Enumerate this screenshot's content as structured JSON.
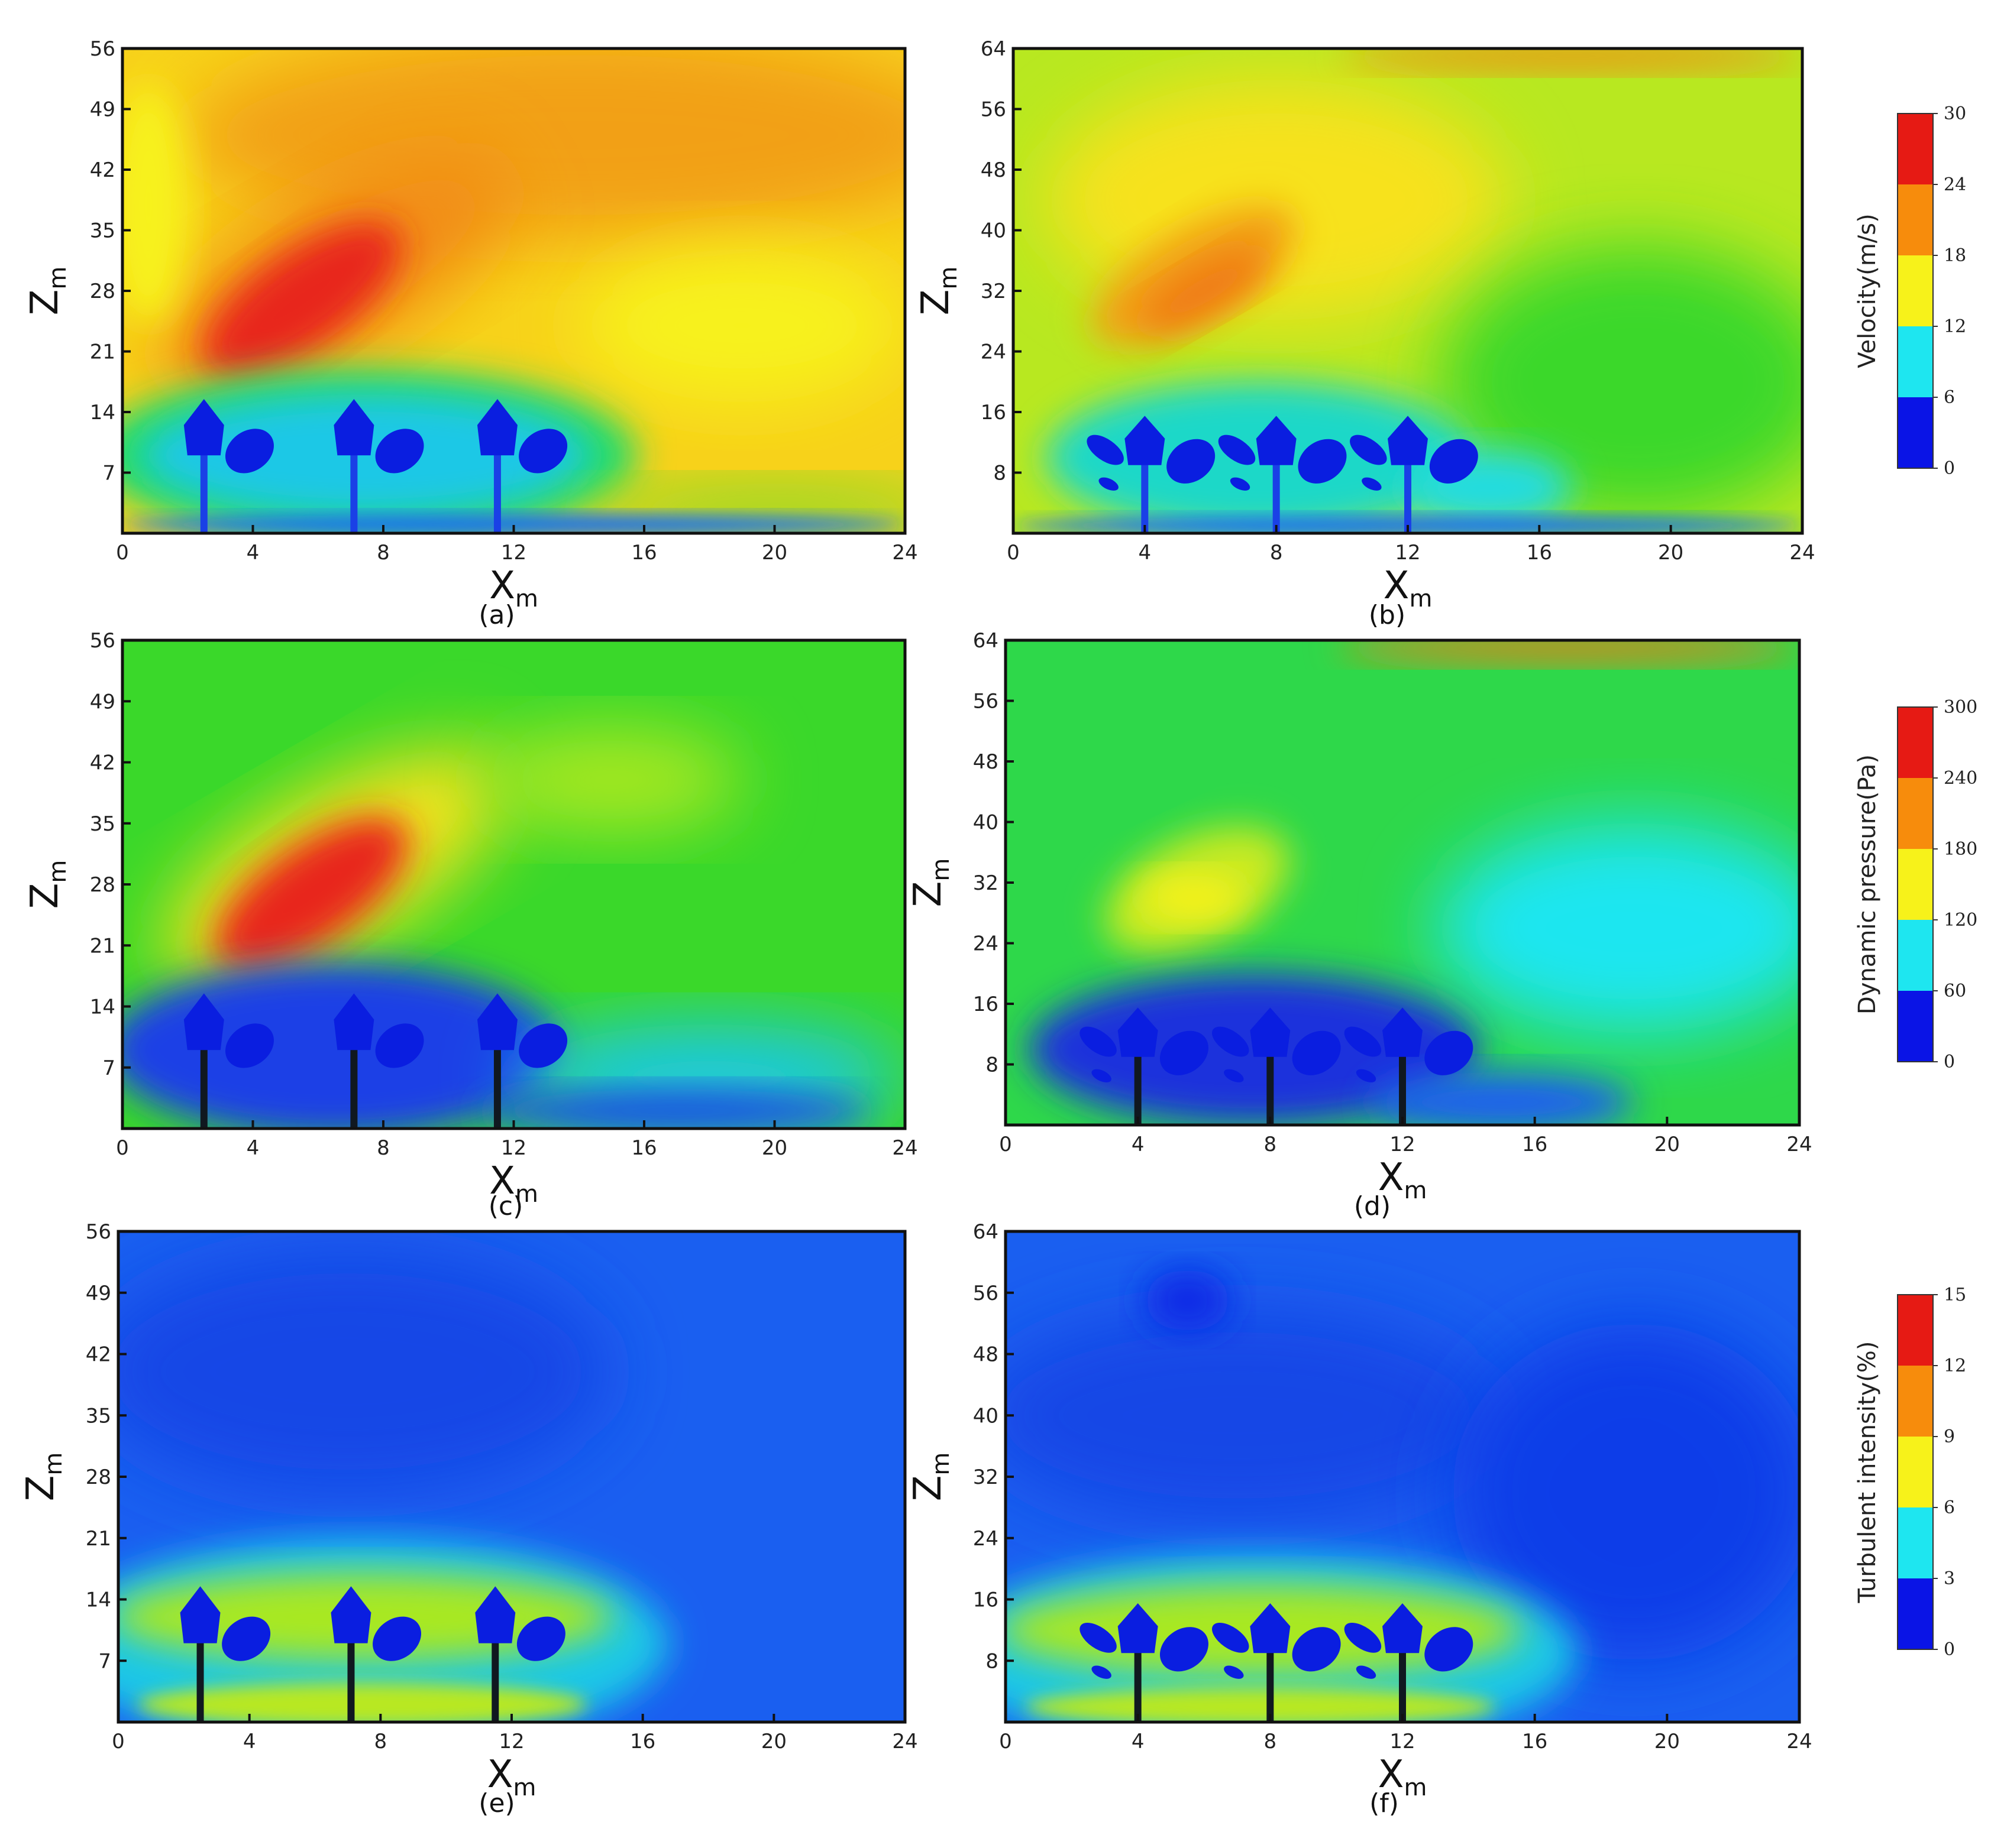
{
  "panels": [
    {
      "label": "(a)",
      "xlabel": "X",
      "xsub": "m",
      "ylabel": "Z",
      "ysub": "m",
      "xticks": [
        0,
        4,
        8,
        12,
        16,
        20,
        24
      ],
      "yticks": [
        7,
        14,
        21,
        28,
        35,
        42,
        49,
        56
      ],
      "ymax": 56,
      "field": "velocity",
      "trees": [
        2.5,
        7.1,
        11.5
      ],
      "bg": "#f7d21a"
    },
    {
      "label": "(b)",
      "xlabel": "X",
      "xsub": "m",
      "ylabel": "Z",
      "ysub": "m",
      "xticks": [
        0,
        4,
        8,
        12,
        16,
        20,
        24
      ],
      "yticks": [
        8,
        16,
        24,
        32,
        40,
        48,
        56,
        64
      ],
      "ymax": 64,
      "field": "velocity",
      "trees": [
        4,
        8,
        12
      ],
      "bg": "#b8e820"
    },
    {
      "label": "(c)",
      "xlabel": "X",
      "xsub": "m",
      "ylabel": "Z",
      "ysub": "m",
      "xticks": [
        0,
        4,
        8,
        12,
        16,
        20,
        24
      ],
      "yticks": [
        7,
        14,
        21,
        28,
        35,
        42,
        49,
        56
      ],
      "ymax": 56,
      "field": "pressure",
      "trees": [
        2.5,
        7.1,
        11.5
      ],
      "bg": "#3ad82a"
    },
    {
      "label": "(d)",
      "xlabel": "X",
      "xsub": "m",
      "ylabel": "Z",
      "ysub": "m",
      "xticks": [
        0,
        4,
        8,
        12,
        16,
        20,
        24
      ],
      "yticks": [
        8,
        16,
        24,
        32,
        40,
        48,
        56,
        64
      ],
      "ymax": 64,
      "field": "pressure",
      "trees": [
        4,
        8,
        12
      ],
      "bg": "#2ed84a"
    },
    {
      "label": "(e)",
      "xlabel": "X",
      "xsub": "m",
      "ylabel": "Z",
      "ysub": "m",
      "xticks": [
        0,
        4,
        8,
        12,
        16,
        20,
        24
      ],
      "yticks": [
        7,
        14,
        21,
        28,
        35,
        42,
        49,
        56
      ],
      "ymax": 56,
      "field": "turbulence",
      "trees": [
        2.5,
        7.1,
        11.5
      ],
      "bg": "#1a5ff0"
    },
    {
      "label": "(f)",
      "xlabel": "X",
      "xsub": "m",
      "ylabel": "Z",
      "ysub": "m",
      "xticks": [
        0,
        4,
        8,
        12,
        16,
        20,
        24
      ],
      "yticks": [
        8,
        16,
        24,
        32,
        40,
        48,
        56,
        64
      ],
      "ymax": 64,
      "field": "turbulence",
      "trees": [
        4,
        8,
        12
      ],
      "bg": "#1a5ff0"
    }
  ],
  "colorbars": [
    {
      "title": "Velocity(m/s)",
      "ticks": [
        0,
        6,
        12,
        18,
        24,
        30
      ]
    },
    {
      "title": "Dynamic pressure(Pa)",
      "ticks": [
        0,
        60,
        120,
        180,
        240,
        300
      ]
    },
    {
      "title": "Turbulent intensity(%)",
      "ticks": [
        0,
        3,
        6,
        9,
        12,
        15
      ]
    }
  ],
  "colors": {
    "levels": [
      "#0a14e6",
      "#1ee6f0",
      "#f7f21a",
      "#f78c0c",
      "#e61a14"
    ]
  },
  "chart_data": [
    {
      "type": "heatmap",
      "panel": "(a)",
      "xlim": [
        0,
        24
      ],
      "ylim": [
        0,
        56
      ],
      "xlabel": "Xm",
      "ylabel": "Zm",
      "colorbar": "Velocity(m/s)"
    },
    {
      "type": "heatmap",
      "panel": "(b)",
      "xlim": [
        0,
        24
      ],
      "ylim": [
        0,
        64
      ],
      "xlabel": "Xm",
      "ylabel": "Zm",
      "colorbar": "Velocity(m/s)"
    },
    {
      "type": "heatmap",
      "panel": "(c)",
      "xlim": [
        0,
        24
      ],
      "ylim": [
        0,
        56
      ],
      "xlabel": "Xm",
      "ylabel": "Zm",
      "colorbar": "Dynamic pressure(Pa)"
    },
    {
      "type": "heatmap",
      "panel": "(d)",
      "xlim": [
        0,
        24
      ],
      "ylim": [
        0,
        64
      ],
      "xlabel": "Xm",
      "ylabel": "Zm",
      "colorbar": "Dynamic pressure(Pa)"
    },
    {
      "type": "heatmap",
      "panel": "(e)",
      "xlim": [
        0,
        24
      ],
      "ylim": [
        0,
        56
      ],
      "xlabel": "Xm",
      "ylabel": "Zm",
      "colorbar": "Turbulent intensity(%)"
    },
    {
      "type": "heatmap",
      "panel": "(f)",
      "xlim": [
        0,
        24
      ],
      "ylim": [
        0,
        64
      ],
      "xlabel": "Xm",
      "ylabel": "Zm",
      "colorbar": "Turbulent intensity(%)"
    }
  ]
}
